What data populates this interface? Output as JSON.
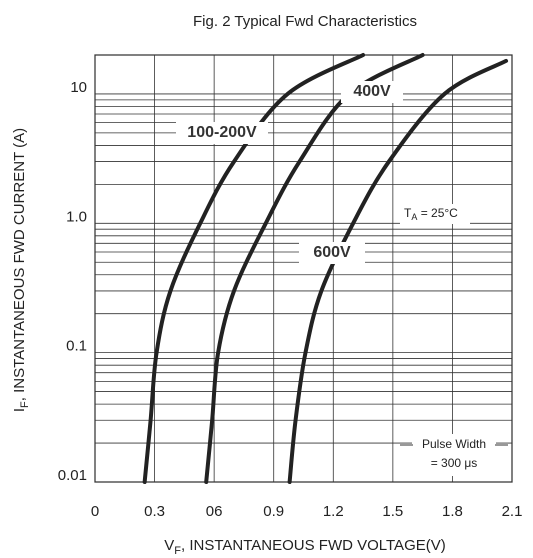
{
  "chart_data": {
    "type": "line",
    "title": "Fig. 2  Typical Fwd Characteristics",
    "x_label": {
      "main": "V",
      "sub": "F",
      "rest": ", INSTANTANEOUS FWD VOLTAGE(V)"
    },
    "y_label": {
      "main": "I",
      "sub": "F",
      "rest": ", INSTANTANEOUS FWD CURRENT (A)"
    },
    "log_y": true,
    "grid": true,
    "xlim": [
      0,
      2.1
    ],
    "xticks": [
      0,
      0.3,
      {
        "value": 0.6,
        "label": "06"
      },
      0.9,
      1.2,
      1.5,
      1.8,
      2.1
    ],
    "ylim": [
      0.01,
      20
    ],
    "yticks": [
      0.01,
      0.1,
      {
        "value": 1,
        "label": "1.0"
      },
      10
    ],
    "yminorticks": [
      0.02,
      0.03,
      0.04,
      0.05,
      0.06,
      0.07,
      0.08,
      0.09,
      0.2,
      0.3,
      0.4,
      0.5,
      0.6,
      0.7,
      0.8,
      0.9,
      2,
      3,
      4,
      5,
      6,
      7,
      8,
      9,
      20
    ],
    "series": [
      {
        "name": "100-200V",
        "color": "#222222",
        "x": [
          0.25,
          0.28,
          0.31,
          0.38,
          0.53,
          0.7,
          0.97,
          1.35
        ],
        "values": [
          0.01,
          0.03,
          0.1,
          0.3,
          1,
          3,
          10,
          20
        ]
      },
      {
        "name": "400V",
        "color": "#222222",
        "x": [
          0.56,
          0.59,
          0.62,
          0.7,
          0.86,
          1.03,
          1.28,
          1.65
        ],
        "values": [
          0.01,
          0.03,
          0.1,
          0.3,
          1,
          3,
          10,
          20
        ]
      },
      {
        "name": "600V",
        "color": "#222222",
        "x": [
          0.98,
          1.01,
          1.06,
          1.14,
          1.3,
          1.48,
          1.76,
          2.07
        ],
        "values": [
          0.01,
          0.03,
          0.1,
          0.3,
          1,
          3,
          10,
          18
        ]
      }
    ],
    "annotations": [
      {
        "main": "T",
        "sub": "A",
        "rest": " = 25°C"
      },
      {
        "line1": "Pulse Width",
        "line2": "= 300 μs"
      }
    ]
  }
}
